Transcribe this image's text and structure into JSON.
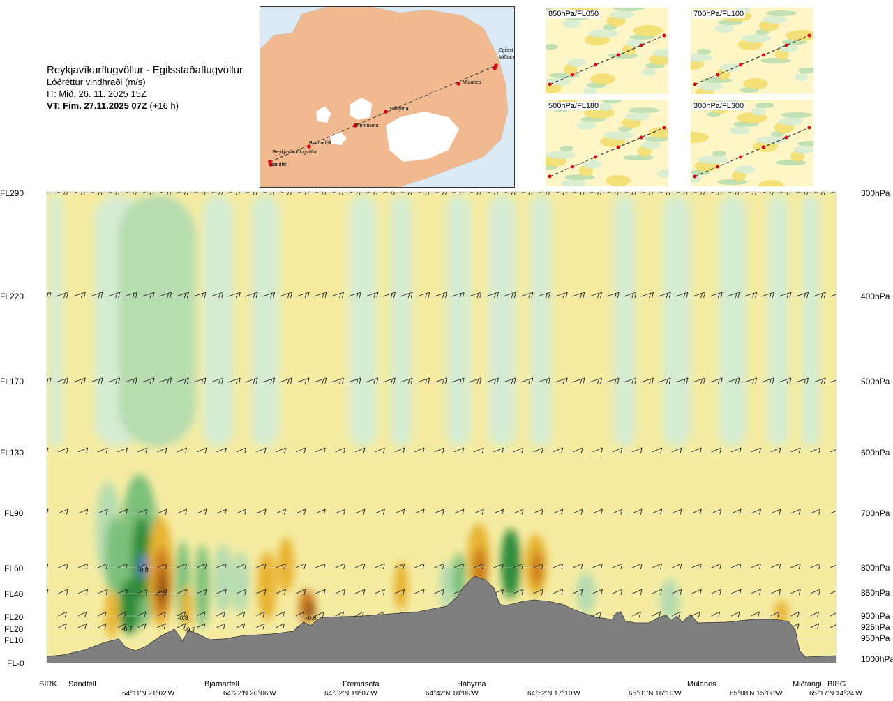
{
  "header": {
    "route": "Reykjavíkurflugvöllur - Egilsstaðaflugvöllur",
    "variable": "Lóðréttur vindhraði (m/s)",
    "issue_time": "IT: Mið. 26. 11. 2025 15Z",
    "valid_time_bold": "VT: Fim. 27.11.2025 07Z",
    "valid_time_offset": " (+16 h)"
  },
  "map": {
    "waypoints": [
      "Reykjavíkurflugvöllur",
      "Sandfell",
      "Bjarnarfell",
      "Fremriseta",
      "Háhyrna",
      "Múlanes",
      "Miðtangi",
      "Egilsst"
    ]
  },
  "insets": [
    {
      "label": "850hPa/FL050"
    },
    {
      "label": "700hPa/FL100"
    },
    {
      "label": "500hPa/FL180"
    },
    {
      "label": "300hPa/FL300"
    }
  ],
  "levels": [
    {
      "fl": "FL290",
      "hpa": "300hPa"
    },
    {
      "fl": "FL220",
      "hpa": "400hPa"
    },
    {
      "fl": "FL170",
      "hpa": "500hPa"
    },
    {
      "fl": "FL130",
      "hpa": "600hPa"
    },
    {
      "fl": "FL90",
      "hpa": "700hPa"
    },
    {
      "fl": "FL60",
      "hpa": "800hPa"
    },
    {
      "fl": "FL40",
      "hpa": "850hPa"
    },
    {
      "fl": "FL20",
      "hpa": "900hPa"
    },
    {
      "fl": "FL20",
      "hpa": "925hPa"
    },
    {
      "fl": "FL10",
      "hpa": "950hPa"
    },
    {
      "fl": "FL-0",
      "hpa": "1000hPa"
    }
  ],
  "locations": [
    "BIRK",
    "Sandfell",
    "Bjarnarfell",
    "Fremriseta",
    "Háhyrna",
    "Múlanes",
    "Miðtangi",
    "BIEG"
  ],
  "coordinates": [
    "64°11'N 21°02'W",
    "64°22'N 20°06'W",
    "64°32'N 19°07'W",
    "64°42'N 18°09'W",
    "64°52'N 17°10'W",
    "65°01'N 16°10'W",
    "65°08'N 15°08'W",
    "65°17'N 14°24'W"
  ],
  "contour_labels": [
    "-0.8",
    "-0.6",
    "-0.8",
    "-0.7",
    "-0.7",
    "-0.6"
  ],
  "colors": {
    "neutral": "#f5eca2",
    "light_down": "#d6ecd2",
    "mid_down": "#b6dcb0",
    "strong_down": "#7cc07c",
    "very_strong_down": "#2e8b3a",
    "extreme_down": "#4f7fbf",
    "light_up": "#f2dc6b",
    "mid_up": "#e8b333",
    "strong_up": "#c97a1a",
    "very_strong_up": "#8a4a14",
    "terrain": "#7f7f7f",
    "map_sea": "#dbeaf5",
    "map_land": "#f0b98f",
    "map_glacier": "#ffffff",
    "route_point": "#e0001b"
  },
  "chart_data": {
    "type": "heatmap",
    "title": "Lóðréttur vindhraði (m/s)",
    "x_axis": "route from BIRK to BIEG",
    "y_axis_left": [
      "FL-0",
      "FL10",
      "FL20",
      "FL20",
      "FL40",
      "FL60",
      "FL90",
      "FL130",
      "FL170",
      "FL220",
      "FL290"
    ],
    "y_axis_right": [
      "1000hPa",
      "950hPa",
      "925hPa",
      "900hPa",
      "850hPa",
      "800hPa",
      "700hPa",
      "600hPa",
      "500hPa",
      "400hPa",
      "300hPa"
    ],
    "waypoints": [
      "BIRK",
      "Sandfell",
      "Bjarnarfell",
      "Fremriseta",
      "Háhyrna",
      "Múlanes",
      "Miðtangi",
      "BIEG"
    ],
    "labelled_minima_m_s": [
      -0.8,
      -0.6,
      -0.8,
      -0.7,
      -0.7,
      -0.6
    ],
    "grid": true
  }
}
